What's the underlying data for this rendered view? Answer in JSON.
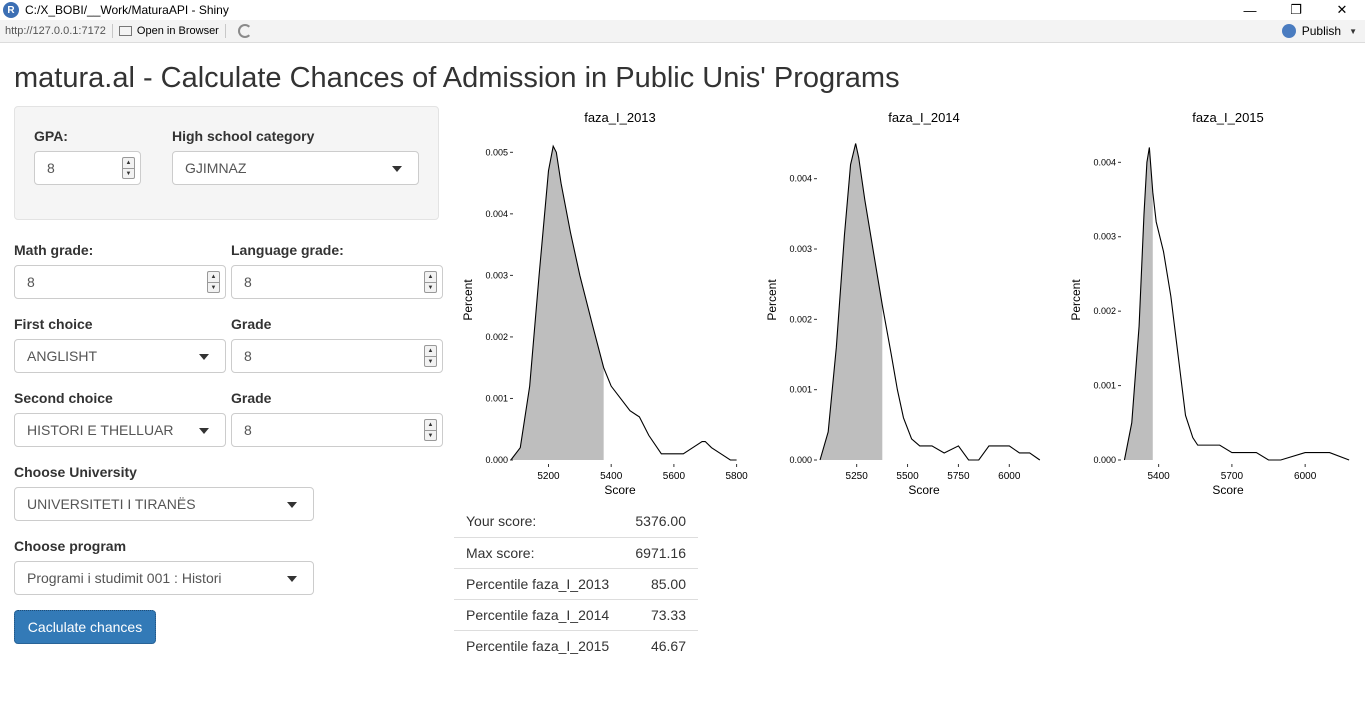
{
  "window": {
    "title": "C:/X_BOBI/__Work/MaturaAPI - Shiny",
    "app_icon_letter": "R"
  },
  "toolbar": {
    "url": "http://127.0.0.1:7172",
    "open_in_browser": "Open in Browser",
    "publish": "Publish"
  },
  "page": {
    "title": "matura.al - Calculate Chances of Admission in Public Unis' Programs"
  },
  "form": {
    "gpa_label": "GPA:",
    "gpa_value": "8",
    "hs_category_label": "High school category",
    "hs_category_value": "GJIMNAZ",
    "math_label": "Math grade:",
    "math_value": "8",
    "language_label": "Language grade:",
    "language_value": "8",
    "first_choice_label": "First choice",
    "first_choice_value": "ANGLISHT",
    "first_grade_label": "Grade",
    "first_grade_value": "8",
    "second_choice_label": "Second choice",
    "second_choice_value": "HISTORI E THELLUAR",
    "second_grade_label": "Grade",
    "second_grade_value": "8",
    "university_label": "Choose University",
    "university_value": "UNIVERSITETI I TIRANËS",
    "program_label": "Choose program",
    "program_value": "Programi i studimit 001 : Histori",
    "calculate_button": "Caclulate chances"
  },
  "chart_data": [
    {
      "type": "area",
      "title": "faza_I_2013",
      "xlabel": "Score",
      "ylabel": "Percent",
      "xlim": [
        5090,
        5830
      ],
      "ylim": [
        0,
        0.0052
      ],
      "x_ticks": [
        "5200",
        "5400",
        "5600",
        "5800"
      ],
      "y_ticks": [
        "0.000",
        "0.001",
        "0.002",
        "0.003",
        "0.004",
        "0.005"
      ],
      "score_cutoff": 5376,
      "x": [
        5080,
        5110,
        5140,
        5170,
        5200,
        5215,
        5225,
        5240,
        5270,
        5300,
        5340,
        5376,
        5400,
        5430,
        5460,
        5490,
        5520,
        5560,
        5600,
        5630,
        5660,
        5690,
        5700,
        5720,
        5750,
        5780,
        5800
      ],
      "y": [
        0,
        0.0002,
        0.0012,
        0.003,
        0.0047,
        0.0051,
        0.005,
        0.0045,
        0.0037,
        0.003,
        0.0022,
        0.0015,
        0.0012,
        0.001,
        0.0008,
        0.0007,
        0.0004,
        0.0001,
        0.0001,
        0.0001,
        0.0002,
        0.0003,
        0.0003,
        0.0002,
        0.0001,
        0.0,
        0.0
      ]
    },
    {
      "type": "area",
      "title": "faza_I_2014",
      "xlabel": "Score",
      "ylabel": "Percent",
      "xlim": [
        5060,
        6200
      ],
      "ylim": [
        0,
        0.00455
      ],
      "x_ticks": [
        "5250",
        "5500",
        "5750",
        "6000"
      ],
      "y_ticks": [
        "0.000",
        "0.001",
        "0.002",
        "0.003",
        "0.004"
      ],
      "score_cutoff": 5376,
      "x": [
        5070,
        5110,
        5150,
        5190,
        5220,
        5245,
        5260,
        5290,
        5330,
        5376,
        5420,
        5450,
        5480,
        5520,
        5560,
        5620,
        5680,
        5750,
        5800,
        5850,
        5900,
        5950,
        6000,
        6050,
        6100,
        6150
      ],
      "y": [
        0,
        0.0004,
        0.0016,
        0.0032,
        0.0042,
        0.0045,
        0.0043,
        0.0037,
        0.003,
        0.0022,
        0.0015,
        0.001,
        0.0006,
        0.0003,
        0.0002,
        0.0002,
        0.0001,
        0.0002,
        0.0,
        0.0,
        0.0002,
        0.0002,
        0.0002,
        0.0001,
        0.0001,
        0.0
      ]
    },
    {
      "type": "area",
      "title": "faza_I_2015",
      "xlabel": "Score",
      "ylabel": "Percent",
      "xlim": [
        5250,
        6200
      ],
      "ylim": [
        0,
        0.0043
      ],
      "x_ticks": [
        "5400",
        "5700",
        "6000"
      ],
      "y_ticks": [
        "0.000",
        "0.001",
        "0.002",
        "0.003",
        "0.004"
      ],
      "score_cutoff": 5376,
      "x": [
        5260,
        5290,
        5320,
        5340,
        5352,
        5362,
        5376,
        5390,
        5420,
        5450,
        5480,
        5510,
        5540,
        5560,
        5600,
        5650,
        5700,
        5760,
        5800,
        5850,
        5900,
        6000,
        6050,
        6100,
        6180
      ],
      "y": [
        0,
        0.0005,
        0.0018,
        0.0033,
        0.004,
        0.0042,
        0.0036,
        0.0032,
        0.0028,
        0.0022,
        0.0014,
        0.0006,
        0.0003,
        0.0002,
        0.0002,
        0.0002,
        0.0001,
        0.0001,
        0.0001,
        0.0,
        0.0,
        0.0001,
        0.0001,
        0.0001,
        0.0
      ]
    }
  ],
  "results": [
    {
      "label": "Your score:",
      "value": "5376.00"
    },
    {
      "label": "Max score:",
      "value": "6971.16"
    },
    {
      "label": "Percentile faza_I_2013",
      "value": "85.00"
    },
    {
      "label": "Percentile faza_I_2014",
      "value": "73.33"
    },
    {
      "label": "Percentile faza_I_2015",
      "value": "46.67"
    }
  ]
}
